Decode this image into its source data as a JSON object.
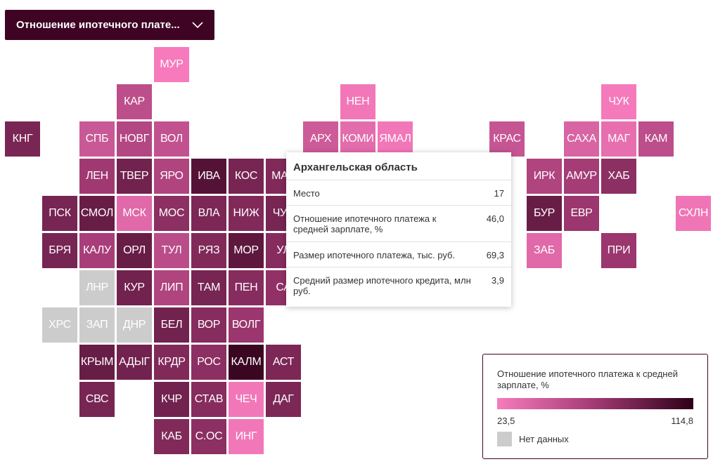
{
  "dropdown": {
    "label": "Отношение ипотечного плате..."
  },
  "colors": {
    "nodata": "#cccccc",
    "scale_low": "#f77bbd",
    "scale_high": "#2e0018",
    "frame": "#3f0424"
  },
  "regions": [
    {
      "label": "МУР",
      "row": 0,
      "col": 4,
      "value": 24.0
    },
    {
      "label": "КАР",
      "row": 1,
      "col": 3,
      "value": 55.0
    },
    {
      "label": "НЕН",
      "row": 1,
      "col": 9,
      "value": 26.0
    },
    {
      "label": "ЧУК",
      "row": 1,
      "col": 16,
      "value": 24.5
    },
    {
      "label": "КНГ",
      "row": 2,
      "col": 0,
      "value": 85.0
    },
    {
      "label": "СПБ",
      "row": 2,
      "col": 2,
      "value": 48.0
    },
    {
      "label": "НОВГ",
      "row": 2,
      "col": 3,
      "value": 60.0
    },
    {
      "label": "ВОЛ",
      "row": 2,
      "col": 4,
      "value": 52.0
    },
    {
      "label": "АРХ",
      "row": 2,
      "col": 8,
      "value": 46.0
    },
    {
      "label": "КОМИ",
      "row": 2,
      "col": 9,
      "value": 34.0
    },
    {
      "label": "ЯМАЛ",
      "row": 2,
      "col": 10,
      "value": 26.0
    },
    {
      "label": "КРАС",
      "row": 2,
      "col": 13,
      "value": 50.0
    },
    {
      "label": "САХА",
      "row": 2,
      "col": 15,
      "value": 40.0
    },
    {
      "label": "МАГ",
      "row": 2,
      "col": 16,
      "value": 32.0
    },
    {
      "label": "КАМ",
      "row": 2,
      "col": 17,
      "value": 55.0
    },
    {
      "label": "ЛЕН",
      "row": 3,
      "col": 2,
      "value": 70.0
    },
    {
      "label": "ТВЕР",
      "row": 3,
      "col": 3,
      "value": 88.0
    },
    {
      "label": "ЯРО",
      "row": 3,
      "col": 4,
      "value": 62.0
    },
    {
      "label": "ИВА",
      "row": 3,
      "col": 5,
      "value": 100.0
    },
    {
      "label": "КОС",
      "row": 3,
      "col": 6,
      "value": 86.0
    },
    {
      "label": "МАР",
      "row": 3,
      "col": 7,
      "value": 82.0
    },
    {
      "label": "ИРК",
      "row": 3,
      "col": 14,
      "value": 62.0
    },
    {
      "label": "АМУР",
      "row": 3,
      "col": 15,
      "value": 68.0
    },
    {
      "label": "ХАБ",
      "row": 3,
      "col": 16,
      "value": 78.0
    },
    {
      "label": "ПСК",
      "row": 4,
      "col": 1,
      "value": 86.0
    },
    {
      "label": "СМОЛ",
      "row": 4,
      "col": 2,
      "value": 92.0
    },
    {
      "label": "МСК",
      "row": 4,
      "col": 3,
      "value": 36.0
    },
    {
      "label": "МОС",
      "row": 4,
      "col": 4,
      "value": 78.0
    },
    {
      "label": "ВЛА",
      "row": 4,
      "col": 5,
      "value": 84.0
    },
    {
      "label": "НИЖ",
      "row": 4,
      "col": 6,
      "value": 82.0
    },
    {
      "label": "ЧУВ",
      "row": 4,
      "col": 7,
      "value": 86.0
    },
    {
      "label": "БУР",
      "row": 4,
      "col": 14,
      "value": 92.0
    },
    {
      "label": "ЕВР",
      "row": 4,
      "col": 15,
      "value": 72.0
    },
    {
      "label": "СХЛН",
      "row": 4,
      "col": 18,
      "value": 28.0
    },
    {
      "label": "БРЯ",
      "row": 5,
      "col": 1,
      "value": 86.0
    },
    {
      "label": "КАЛУ",
      "row": 5,
      "col": 2,
      "value": 66.0
    },
    {
      "label": "ОРЛ",
      "row": 5,
      "col": 3,
      "value": 92.0
    },
    {
      "label": "ТУЛ",
      "row": 5,
      "col": 4,
      "value": 56.0
    },
    {
      "label": "РЯЗ",
      "row": 5,
      "col": 5,
      "value": 82.0
    },
    {
      "label": "МОР",
      "row": 5,
      "col": 6,
      "value": 96.0
    },
    {
      "label": "УЛ",
      "row": 5,
      "col": 7,
      "value": 80.0
    },
    {
      "label": "ЗАБ",
      "row": 5,
      "col": 14,
      "value": 36.0
    },
    {
      "label": "ПРИ",
      "row": 5,
      "col": 16,
      "value": 72.0
    },
    {
      "label": "ЛНР",
      "row": 6,
      "col": 2,
      "value": null
    },
    {
      "label": "КУР",
      "row": 6,
      "col": 3,
      "value": 88.0
    },
    {
      "label": "ЛИП",
      "row": 6,
      "col": 4,
      "value": 62.0
    },
    {
      "label": "ТАМ",
      "row": 6,
      "col": 5,
      "value": 86.0
    },
    {
      "label": "ПЕН",
      "row": 6,
      "col": 6,
      "value": 80.0
    },
    {
      "label": "СА",
      "row": 6,
      "col": 7,
      "value": 76.0
    },
    {
      "label": "ХРС",
      "row": 7,
      "col": 1,
      "value": null
    },
    {
      "label": "ЗАП",
      "row": 7,
      "col": 2,
      "value": null
    },
    {
      "label": "ДНР",
      "row": 7,
      "col": 3,
      "value": null
    },
    {
      "label": "БЕЛ",
      "row": 7,
      "col": 4,
      "value": 88.0
    },
    {
      "label": "ВОР",
      "row": 7,
      "col": 5,
      "value": 80.0
    },
    {
      "label": "ВОЛГ",
      "row": 7,
      "col": 6,
      "value": 72.0
    },
    {
      "label": "КРЫМ",
      "row": 8,
      "col": 2,
      "value": 92.0
    },
    {
      "label": "АДЫГ",
      "row": 8,
      "col": 3,
      "value": 88.0
    },
    {
      "label": "КРДР",
      "row": 8,
      "col": 4,
      "value": 82.0
    },
    {
      "label": "РОС",
      "row": 8,
      "col": 5,
      "value": 78.0
    },
    {
      "label": "КАЛМ",
      "row": 8,
      "col": 6,
      "value": 110.0
    },
    {
      "label": "АСТ",
      "row": 8,
      "col": 7,
      "value": 84.0
    },
    {
      "label": "СВС",
      "row": 9,
      "col": 2,
      "value": 86.0
    },
    {
      "label": "КЧР",
      "row": 9,
      "col": 4,
      "value": 88.0
    },
    {
      "label": "СТАВ",
      "row": 9,
      "col": 5,
      "value": 80.0
    },
    {
      "label": "ЧЕЧ",
      "row": 9,
      "col": 6,
      "value": 26.0
    },
    {
      "label": "ДАГ",
      "row": 9,
      "col": 7,
      "value": 84.0
    },
    {
      "label": "КАБ",
      "row": 10,
      "col": 4,
      "value": 82.0
    },
    {
      "label": "С.ОС",
      "row": 10,
      "col": 5,
      "value": 78.0
    },
    {
      "label": "ИНГ",
      "row": 10,
      "col": 6,
      "value": 26.0
    }
  ],
  "tooltip": {
    "title": "Архангельская область",
    "rows": [
      {
        "label": "Место",
        "value": "17"
      },
      {
        "label": "Отношение ипотечного платежа к средней зарплате, %",
        "value": "46,0"
      },
      {
        "label": "Размер ипотечного платежа, тыс. руб.",
        "value": "69,3"
      },
      {
        "label": "Средний размер ипотечного кредита, млн руб.",
        "value": "3,9"
      }
    ]
  },
  "legend": {
    "title": "Отношение ипотечного платежа к средней зарплате, %",
    "min": 23.5,
    "max": 114.8,
    "min_label": "23,5",
    "max_label": "114,8",
    "nodata_label": "Нет данных"
  }
}
